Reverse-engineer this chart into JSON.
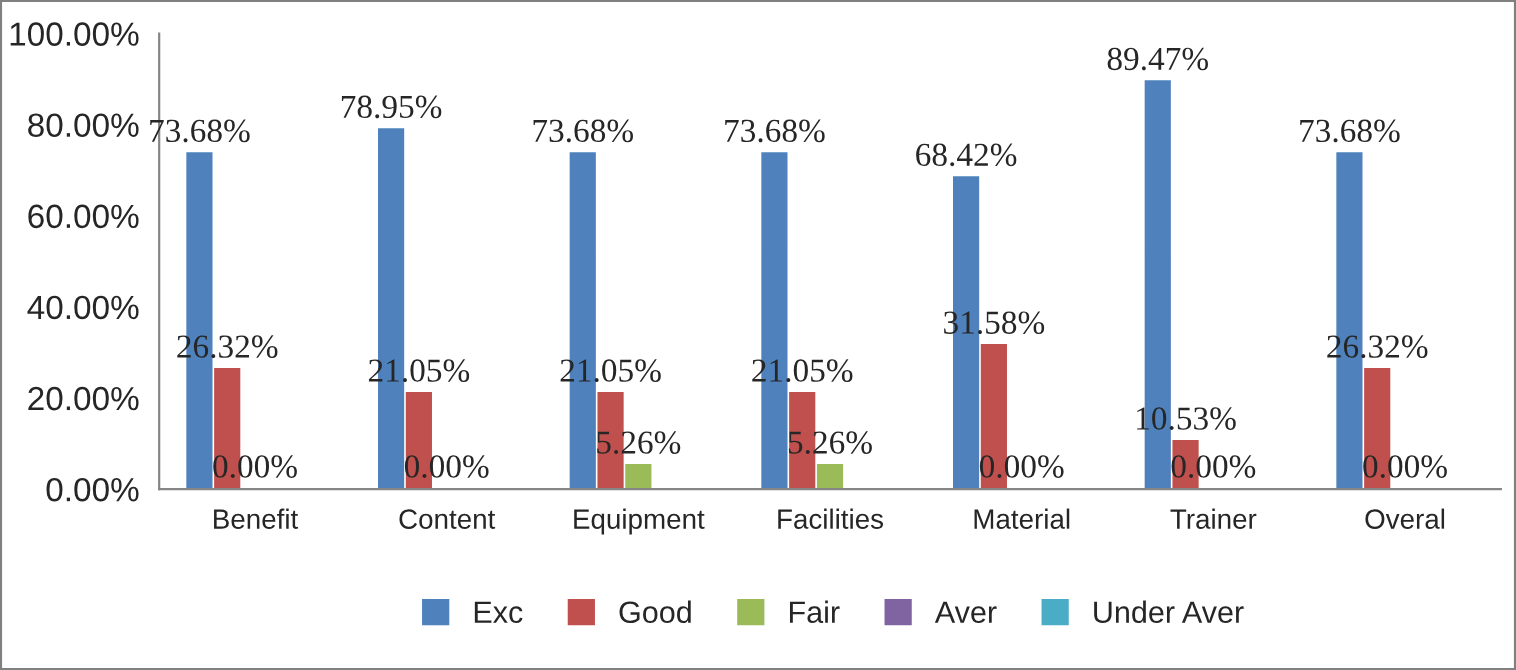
{
  "chart_data": {
    "type": "bar",
    "categories": [
      "Benefit",
      "Content",
      "Equipment",
      "Facilities",
      "Material",
      "Trainer",
      "Overal"
    ],
    "series": [
      {
        "name": "Exc",
        "color": "#4f81bd",
        "values": [
          73.68,
          78.95,
          73.68,
          73.68,
          68.42,
          89.47,
          73.68
        ],
        "value_labels": [
          "73.68%",
          "78.95%",
          "73.68%",
          "73.68%",
          "68.42%",
          "89.47%",
          "73.68%"
        ]
      },
      {
        "name": "Good",
        "color": "#c0504d",
        "values": [
          26.32,
          21.05,
          21.05,
          21.05,
          31.58,
          10.53,
          26.32
        ],
        "value_labels": [
          "26.32%",
          "21.05%",
          "21.05%",
          "21.05%",
          "31.58%",
          "10.53%",
          "26.32%"
        ]
      },
      {
        "name": "Fair",
        "color": "#9bbb59",
        "values": [
          0,
          0,
          5.26,
          5.26,
          0,
          0,
          0
        ],
        "value_labels": [
          "0.00%",
          "0.00%",
          "5.26%",
          "5.26%",
          "0.00%",
          "0.00%",
          "0.00%"
        ]
      },
      {
        "name": "Aver",
        "color": "#8064a2",
        "values": [
          0,
          0,
          0,
          0,
          0,
          0,
          0
        ]
      },
      {
        "name": "Under Aver",
        "color": "#4bacc6",
        "values": [
          0,
          0,
          0,
          0,
          0,
          0,
          0
        ]
      }
    ],
    "ylim": [
      0,
      100
    ],
    "yticks": [
      {
        "value": 0,
        "label": "0.00%"
      },
      {
        "value": 20,
        "label": "20.00%"
      },
      {
        "value": 40,
        "label": "40.00%"
      },
      {
        "value": 60,
        "label": "60.00%"
      },
      {
        "value": 80,
        "label": "80.00%"
      },
      {
        "value": 100,
        "label": "100.00%"
      }
    ],
    "grid": false,
    "legend": "bottom"
  }
}
